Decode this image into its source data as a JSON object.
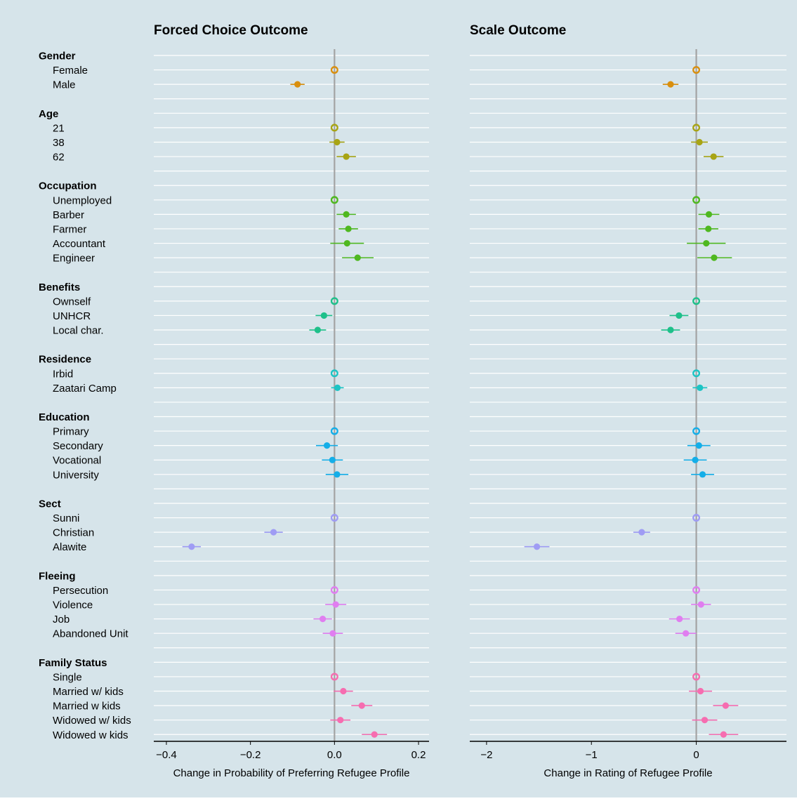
{
  "chart_data": {
    "type": "scatter",
    "subtype": "coefficient-plot with confidence intervals",
    "background": "#d6e4ea",
    "attributes": [
      {
        "name": "Gender",
        "color": "#d98f0e",
        "levels": [
          "Female",
          "Male"
        ]
      },
      {
        "name": "Age",
        "color": "#a8a414",
        "levels": [
          "21",
          "38",
          "62"
        ]
      },
      {
        "name": "Occupation",
        "color": "#4fb820",
        "levels": [
          "Unemployed",
          "Barber",
          "Farmer",
          "Accountant",
          "Engineer"
        ]
      },
      {
        "name": "Benefits",
        "color": "#1ec08a",
        "levels": [
          "Ownself",
          "UNHCR",
          "Local char."
        ]
      },
      {
        "name": "Residence",
        "color": "#1cc4c4",
        "levels": [
          "Irbid",
          "Zaatari Camp"
        ]
      },
      {
        "name": "Education",
        "color": "#14aee8",
        "levels": [
          "Primary",
          "Secondary",
          "Vocational",
          "University"
        ]
      },
      {
        "name": "Sect",
        "color": "#9f9cf4",
        "levels": [
          "Sunni",
          "Christian",
          "Alawite"
        ]
      },
      {
        "name": "Fleeing",
        "color": "#e07ef0",
        "levels": [
          "Persecution",
          "Violence",
          "Job",
          "Abandoned Unit"
        ]
      },
      {
        "name": "Family Status",
        "color": "#f66db0",
        "levels": [
          "Single",
          "Married w/ kids",
          "Married w kids",
          "Widowed w/ kids",
          "Widowed w kids"
        ]
      }
    ],
    "panels": [
      {
        "title": "Forced Choice Outcome",
        "xlabel": "Change in Probability of Preferring Refugee Profile",
        "xlim": [
          -0.43,
          0.225
        ],
        "xticks": [
          -0.4,
          -0.2,
          0.0,
          0.2
        ],
        "xtick_labels": [
          "−0.4",
          "−0.2",
          "0.0",
          "0.2"
        ],
        "reference_line": 0,
        "estimates": [
          {
            "level": "Female",
            "est": 0,
            "lo": 0,
            "hi": 0,
            "baseline": true
          },
          {
            "level": "Male",
            "est": -0.088,
            "lo": -0.105,
            "hi": -0.071
          },
          {
            "level": "21",
            "est": 0,
            "lo": 0,
            "hi": 0,
            "baseline": true
          },
          {
            "level": "38",
            "est": 0.006,
            "lo": -0.012,
            "hi": 0.024
          },
          {
            "level": "62",
            "est": 0.028,
            "lo": 0.005,
            "hi": 0.051
          },
          {
            "level": "Unemployed",
            "est": 0,
            "lo": 0,
            "hi": 0,
            "baseline": true
          },
          {
            "level": "Barber",
            "est": 0.028,
            "lo": 0.005,
            "hi": 0.051
          },
          {
            "level": "Farmer",
            "est": 0.033,
            "lo": 0.01,
            "hi": 0.056
          },
          {
            "level": "Accountant",
            "est": 0.03,
            "lo": -0.01,
            "hi": 0.07
          },
          {
            "level": "Engineer",
            "est": 0.055,
            "lo": 0.018,
            "hi": 0.093
          },
          {
            "level": "Ownself",
            "est": 0,
            "lo": 0,
            "hi": 0,
            "baseline": true
          },
          {
            "level": "UNHCR",
            "est": -0.025,
            "lo": -0.045,
            "hi": -0.005
          },
          {
            "level": "Local char.",
            "est": -0.04,
            "lo": -0.06,
            "hi": -0.02
          },
          {
            "level": "Irbid",
            "est": 0,
            "lo": 0,
            "hi": 0,
            "baseline": true
          },
          {
            "level": "Zaatari Camp",
            "est": 0.007,
            "lo": -0.008,
            "hi": 0.022
          },
          {
            "level": "Primary",
            "est": 0,
            "lo": 0,
            "hi": 0,
            "baseline": true
          },
          {
            "level": "Secondary",
            "est": -0.018,
            "lo": -0.044,
            "hi": 0.008
          },
          {
            "level": "Vocational",
            "est": -0.005,
            "lo": -0.03,
            "hi": 0.02
          },
          {
            "level": "University",
            "est": 0.006,
            "lo": -0.021,
            "hi": 0.033
          },
          {
            "level": "Sunni",
            "est": 0,
            "lo": 0,
            "hi": 0,
            "baseline": true
          },
          {
            "level": "Christian",
            "est": -0.145,
            "lo": -0.167,
            "hi": -0.123
          },
          {
            "level": "Alawite",
            "est": -0.34,
            "lo": -0.362,
            "hi": -0.318
          },
          {
            "level": "Persecution",
            "est": 0,
            "lo": 0,
            "hi": 0,
            "baseline": true
          },
          {
            "level": "Violence",
            "est": 0.003,
            "lo": -0.022,
            "hi": 0.028
          },
          {
            "level": "Job",
            "est": -0.028,
            "lo": -0.05,
            "hi": -0.006
          },
          {
            "level": "Abandoned Unit",
            "est": -0.004,
            "lo": -0.028,
            "hi": 0.02
          },
          {
            "level": "Single",
            "est": 0,
            "lo": 0,
            "hi": 0,
            "baseline": true
          },
          {
            "level": "Married w/ kids",
            "est": 0.021,
            "lo": -0.002,
            "hi": 0.044
          },
          {
            "level": "Married w kids",
            "est": 0.065,
            "lo": 0.04,
            "hi": 0.09
          },
          {
            "level": "Widowed w/ kids",
            "est": 0.014,
            "lo": -0.01,
            "hi": 0.038
          },
          {
            "level": "Widowed w kids",
            "est": 0.095,
            "lo": 0.065,
            "hi": 0.125
          }
        ]
      },
      {
        "title": "Scale Outcome",
        "xlabel": "Change in Rating of Refugee Profile",
        "xlim": [
          -2.16,
          0.86
        ],
        "xticks": [
          -2,
          -1,
          0
        ],
        "xtick_labels": [
          "−2",
          "−1",
          "0"
        ],
        "reference_line": 0,
        "estimates": [
          {
            "level": "Female",
            "est": 0,
            "lo": 0,
            "hi": 0,
            "baseline": true
          },
          {
            "level": "Male",
            "est": -0.245,
            "lo": -0.32,
            "hi": -0.17
          },
          {
            "level": "21",
            "est": 0,
            "lo": 0,
            "hi": 0,
            "baseline": true
          },
          {
            "level": "38",
            "est": 0.03,
            "lo": -0.05,
            "hi": 0.11
          },
          {
            "level": "62",
            "est": 0.165,
            "lo": 0.07,
            "hi": 0.26
          },
          {
            "level": "Unemployed",
            "est": 0,
            "lo": 0,
            "hi": 0,
            "baseline": true
          },
          {
            "level": "Barber",
            "est": 0.12,
            "lo": 0.02,
            "hi": 0.22
          },
          {
            "level": "Farmer",
            "est": 0.115,
            "lo": 0.02,
            "hi": 0.21
          },
          {
            "level": "Accountant",
            "est": 0.095,
            "lo": -0.09,
            "hi": 0.28
          },
          {
            "level": "Engineer",
            "est": 0.17,
            "lo": 0.01,
            "hi": 0.34
          },
          {
            "level": "Ownself",
            "est": 0,
            "lo": 0,
            "hi": 0,
            "baseline": true
          },
          {
            "level": "UNHCR",
            "est": -0.165,
            "lo": -0.255,
            "hi": -0.075
          },
          {
            "level": "Local char.",
            "est": -0.245,
            "lo": -0.335,
            "hi": -0.155
          },
          {
            "level": "Irbid",
            "est": 0,
            "lo": 0,
            "hi": 0,
            "baseline": true
          },
          {
            "level": "Zaatari Camp",
            "est": 0.035,
            "lo": -0.035,
            "hi": 0.105
          },
          {
            "level": "Primary",
            "est": 0,
            "lo": 0,
            "hi": 0,
            "baseline": true
          },
          {
            "level": "Secondary",
            "est": 0.025,
            "lo": -0.085,
            "hi": 0.135
          },
          {
            "level": "Vocational",
            "est": -0.01,
            "lo": -0.12,
            "hi": 0.1
          },
          {
            "level": "University",
            "est": 0.06,
            "lo": -0.05,
            "hi": 0.17
          },
          {
            "level": "Sunni",
            "est": 0,
            "lo": 0,
            "hi": 0,
            "baseline": true
          },
          {
            "level": "Christian",
            "est": -0.52,
            "lo": -0.6,
            "hi": -0.44
          },
          {
            "level": "Alawite",
            "est": -1.52,
            "lo": -1.64,
            "hi": -1.4
          },
          {
            "level": "Persecution",
            "est": 0,
            "lo": 0,
            "hi": 0,
            "baseline": true
          },
          {
            "level": "Violence",
            "est": 0.045,
            "lo": -0.05,
            "hi": 0.14
          },
          {
            "level": "Job",
            "est": -0.16,
            "lo": -0.26,
            "hi": -0.06
          },
          {
            "level": "Abandoned Unit",
            "est": -0.1,
            "lo": -0.2,
            "hi": 0.0
          },
          {
            "level": "Single",
            "est": 0,
            "lo": 0,
            "hi": 0,
            "baseline": true
          },
          {
            "level": "Married w/ kids",
            "est": 0.04,
            "lo": -0.07,
            "hi": 0.15
          },
          {
            "level": "Married w kids",
            "est": 0.28,
            "lo": 0.16,
            "hi": 0.4
          },
          {
            "level": "Widowed w/ kids",
            "est": 0.08,
            "lo": -0.04,
            "hi": 0.2
          },
          {
            "level": "Widowed w kids",
            "est": 0.26,
            "lo": 0.12,
            "hi": 0.4
          }
        ]
      }
    ]
  }
}
